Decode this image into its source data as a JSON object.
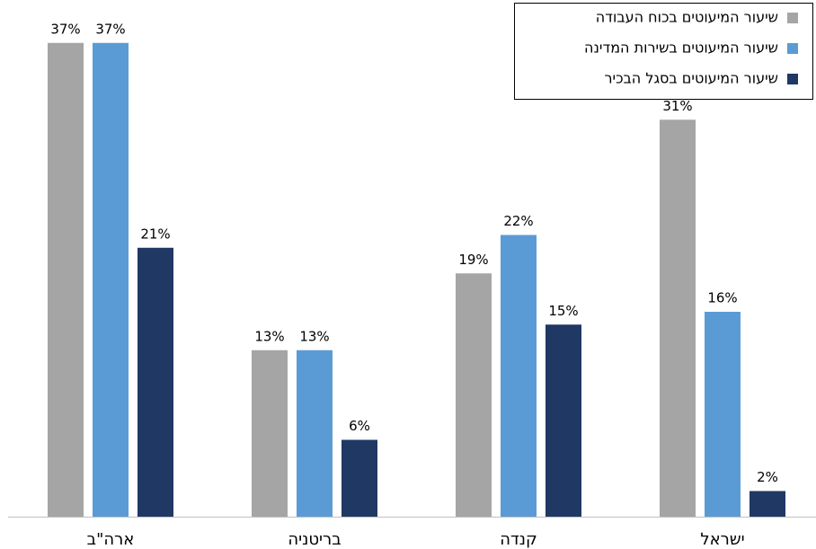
{
  "chart_data": {
    "type": "bar",
    "categories": [
      "ארה\"ב",
      "בריטניה",
      "קנדה",
      "ישראל"
    ],
    "series": [
      {
        "name": "שיעור המיעוטים בכוח העבודה",
        "color": "#a5a5a5",
        "values": [
          37,
          13,
          19,
          31
        ],
        "value_labels": [
          "37%",
          "13%",
          "19%",
          "31%"
        ]
      },
      {
        "name": "שיעור המיעוטים בשירות המדינה",
        "color": "#5b9bd5",
        "values": [
          37,
          13,
          22,
          16
        ],
        "value_labels": [
          "37%",
          "13%",
          "22%",
          "16%"
        ]
      },
      {
        "name": "שיעור המיעוטים בסגל הבכיר",
        "color": "#203864",
        "values": [
          21,
          6,
          15,
          2
        ],
        "value_labels": [
          "21%",
          "6%",
          "15%",
          "2%"
        ]
      }
    ],
    "ylim": [
      0,
      40
    ],
    "legend": "top-right",
    "grid": false
  }
}
